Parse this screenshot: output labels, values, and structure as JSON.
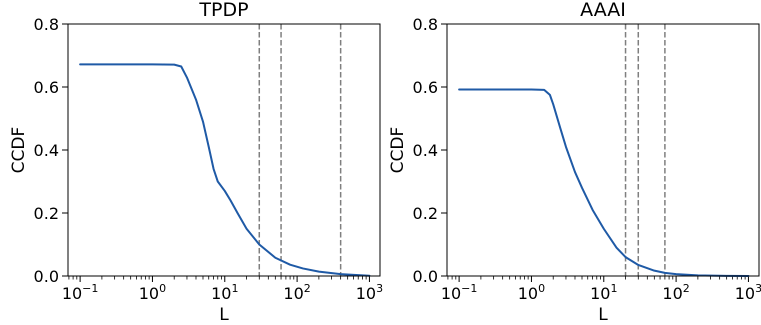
{
  "chart_data": [
    {
      "type": "line",
      "title": "TPDP",
      "xlabel": "L",
      "ylabel": "CCDF",
      "xscale": "log",
      "xlim": [
        0.068,
        1400
      ],
      "ylim": [
        0,
        0.8
      ],
      "xticks": [
        {
          "value": 0.1,
          "base": "10",
          "exp": "−1"
        },
        {
          "value": 1,
          "base": "10",
          "exp": "0"
        },
        {
          "value": 10,
          "base": "10",
          "exp": "1"
        },
        {
          "value": 100,
          "base": "10",
          "exp": "2"
        },
        {
          "value": 1000,
          "base": "10",
          "exp": "3"
        }
      ],
      "yticks": [
        {
          "value": 0.0,
          "label": "0.0"
        },
        {
          "value": 0.2,
          "label": "0.2"
        },
        {
          "value": 0.4,
          "label": "0.4"
        },
        {
          "value": 0.6,
          "label": "0.6"
        },
        {
          "value": 0.8,
          "label": "0.8"
        }
      ],
      "grid": false,
      "line_color": "#1f5aa6",
      "vline_color": "#7f7f7f",
      "vlines": [
        30,
        60,
        400
      ],
      "series": [
        {
          "x": [
            0.1,
            0.5,
            1.0,
            2.0,
            2.5,
            3.0,
            4.0,
            5.0,
            6.0,
            7.0,
            8.0,
            10.0,
            12.0,
            15.0,
            20.0,
            30.0,
            50.0,
            80.0,
            120.0,
            200.0,
            400.0,
            1000.0
          ],
          "y": [
            0.672,
            0.672,
            0.672,
            0.671,
            0.665,
            0.63,
            0.56,
            0.49,
            0.41,
            0.34,
            0.3,
            0.27,
            0.24,
            0.2,
            0.15,
            0.1,
            0.058,
            0.036,
            0.024,
            0.014,
            0.006,
            0.001
          ]
        }
      ]
    },
    {
      "type": "line",
      "title": "AAAI",
      "xlabel": "L",
      "ylabel": "CCDF",
      "xscale": "log",
      "xlim": [
        0.068,
        1400
      ],
      "ylim": [
        0,
        0.8
      ],
      "xticks": [
        {
          "value": 0.1,
          "base": "10",
          "exp": "−1"
        },
        {
          "value": 1,
          "base": "10",
          "exp": "0"
        },
        {
          "value": 10,
          "base": "10",
          "exp": "1"
        },
        {
          "value": 100,
          "base": "10",
          "exp": "2"
        },
        {
          "value": 1000,
          "base": "10",
          "exp": "3"
        }
      ],
      "yticks": [
        {
          "value": 0.0,
          "label": "0.0"
        },
        {
          "value": 0.2,
          "label": "0.2"
        },
        {
          "value": 0.4,
          "label": "0.4"
        },
        {
          "value": 0.6,
          "label": "0.6"
        },
        {
          "value": 0.8,
          "label": "0.8"
        }
      ],
      "grid": false,
      "line_color": "#1f5aa6",
      "vline_color": "#7f7f7f",
      "vlines": [
        20,
        30,
        70
      ],
      "series": [
        {
          "x": [
            0.1,
            0.5,
            1.0,
            1.5,
            1.8,
            2.0,
            2.5,
            3.0,
            4.0,
            5.0,
            7.0,
            10.0,
            15.0,
            20.0,
            30.0,
            50.0,
            70.0,
            100.0,
            200.0,
            500.0,
            1000.0
          ],
          "y": [
            0.592,
            0.592,
            0.592,
            0.591,
            0.575,
            0.545,
            0.47,
            0.41,
            0.33,
            0.28,
            0.21,
            0.15,
            0.09,
            0.06,
            0.035,
            0.017,
            0.01,
            0.006,
            0.002,
            0.0005,
            0.0002
          ]
        }
      ]
    }
  ]
}
